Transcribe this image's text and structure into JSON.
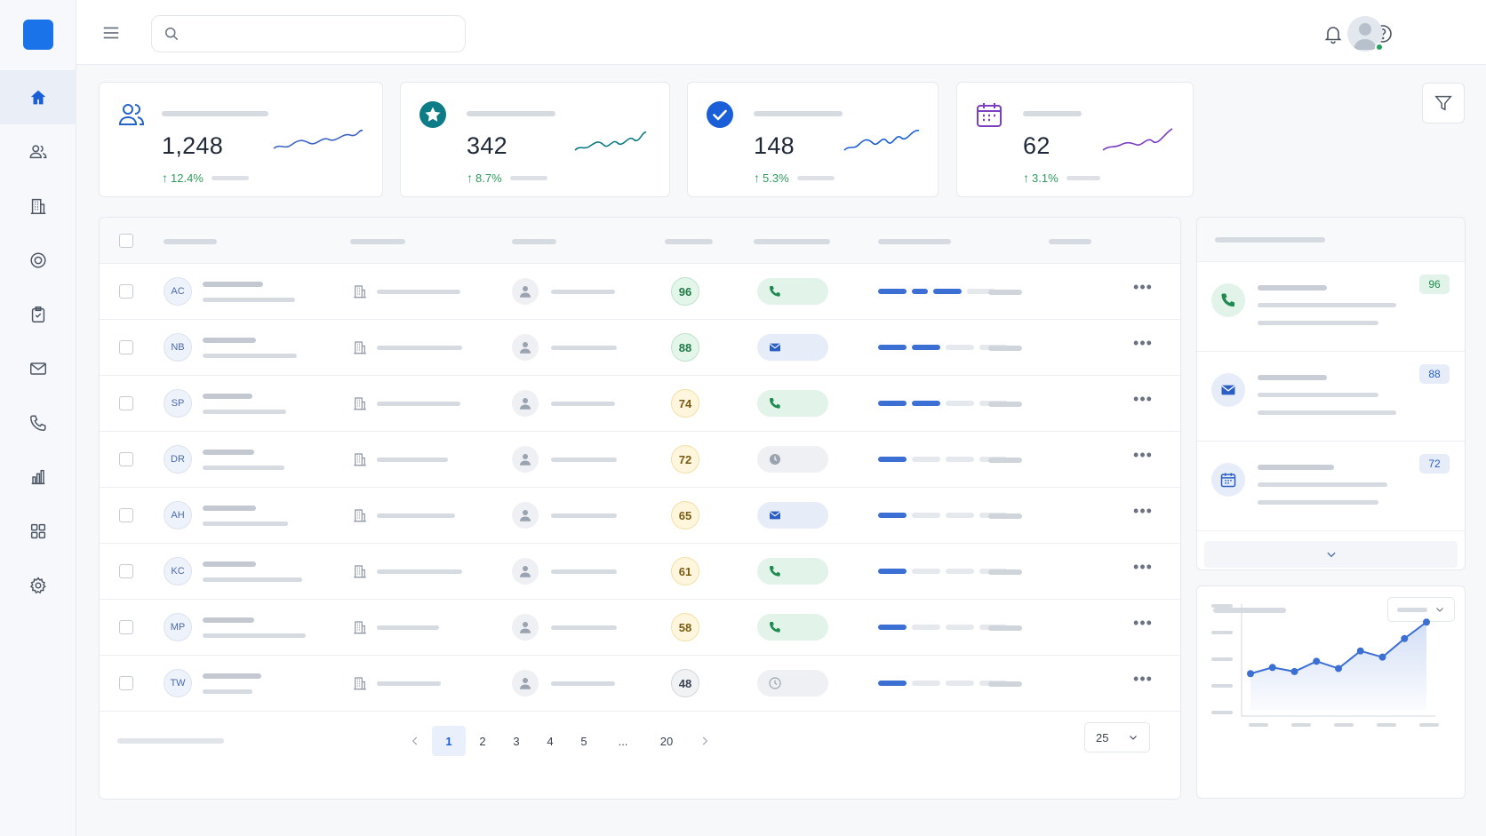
{
  "sidebar": {
    "items": [
      {
        "icon": "home-icon",
        "active": true
      },
      {
        "icon": "users-icon"
      },
      {
        "icon": "building-icon"
      },
      {
        "icon": "target-icon"
      },
      {
        "icon": "clipboard-check-icon"
      },
      {
        "icon": "mail-icon"
      },
      {
        "icon": "phone-icon"
      },
      {
        "icon": "bar-chart-icon"
      },
      {
        "icon": "grid-icon"
      },
      {
        "icon": "settings-icon"
      }
    ]
  },
  "header": {
    "search": {
      "value": "",
      "placeholder": ""
    },
    "icons": [
      "menu-icon",
      "search-icon",
      "bell-icon",
      "help-icon",
      "avatar"
    ]
  },
  "stats": [
    {
      "icon": "users-icon",
      "value": "1,248",
      "delta": "12.4%",
      "color": "#2563c9"
    },
    {
      "icon": "star-badge-icon",
      "value": "342",
      "delta": "8.7%",
      "color": "#0e7c86"
    },
    {
      "icon": "check-circle-icon",
      "value": "148",
      "delta": "5.3%",
      "color": "#1a5fd8"
    },
    {
      "icon": "calendar-icon",
      "value": "62",
      "delta": "3.1%",
      "color": "#7b3fc0"
    }
  ],
  "colors": {
    "accent": "#1a73e8",
    "positive": "#2e9a5b",
    "progress": "#3b6fd4"
  },
  "table": {
    "rows": [
      {
        "initials": "AC",
        "score": "96",
        "status": "phone",
        "progress": 3
      },
      {
        "initials": "NB",
        "score": "88",
        "status": "mail",
        "progress": 2
      },
      {
        "initials": "SP",
        "score": "74",
        "status": "phone",
        "progress": 2
      },
      {
        "initials": "DR",
        "score": "72",
        "status": "clock",
        "progress": 1
      },
      {
        "initials": "AH",
        "score": "65",
        "status": "mail",
        "progress": 1
      },
      {
        "initials": "KC",
        "score": "61",
        "status": "phone",
        "progress": 1
      },
      {
        "initials": "MP",
        "score": "58",
        "status": "phone",
        "progress": 1
      },
      {
        "initials": "TW",
        "score": "48",
        "status": "clock-outline",
        "progress": 1
      }
    ],
    "pagination": {
      "pages": [
        "1",
        "2",
        "3",
        "4",
        "5",
        "...",
        "20"
      ],
      "current": "1",
      "per_page": "25"
    }
  },
  "activity": {
    "items": [
      {
        "icon": "phone-icon",
        "badge": "96"
      },
      {
        "icon": "mail-icon",
        "badge": "88"
      },
      {
        "icon": "calendar-icon",
        "badge": "72"
      }
    ]
  },
  "chart_data": {
    "type": "line",
    "title": "",
    "xlabel": "",
    "ylabel": "",
    "values": [
      36,
      42,
      38,
      48,
      41,
      58,
      52,
      70,
      86
    ],
    "ylim": [
      0,
      100
    ],
    "grid": false
  }
}
